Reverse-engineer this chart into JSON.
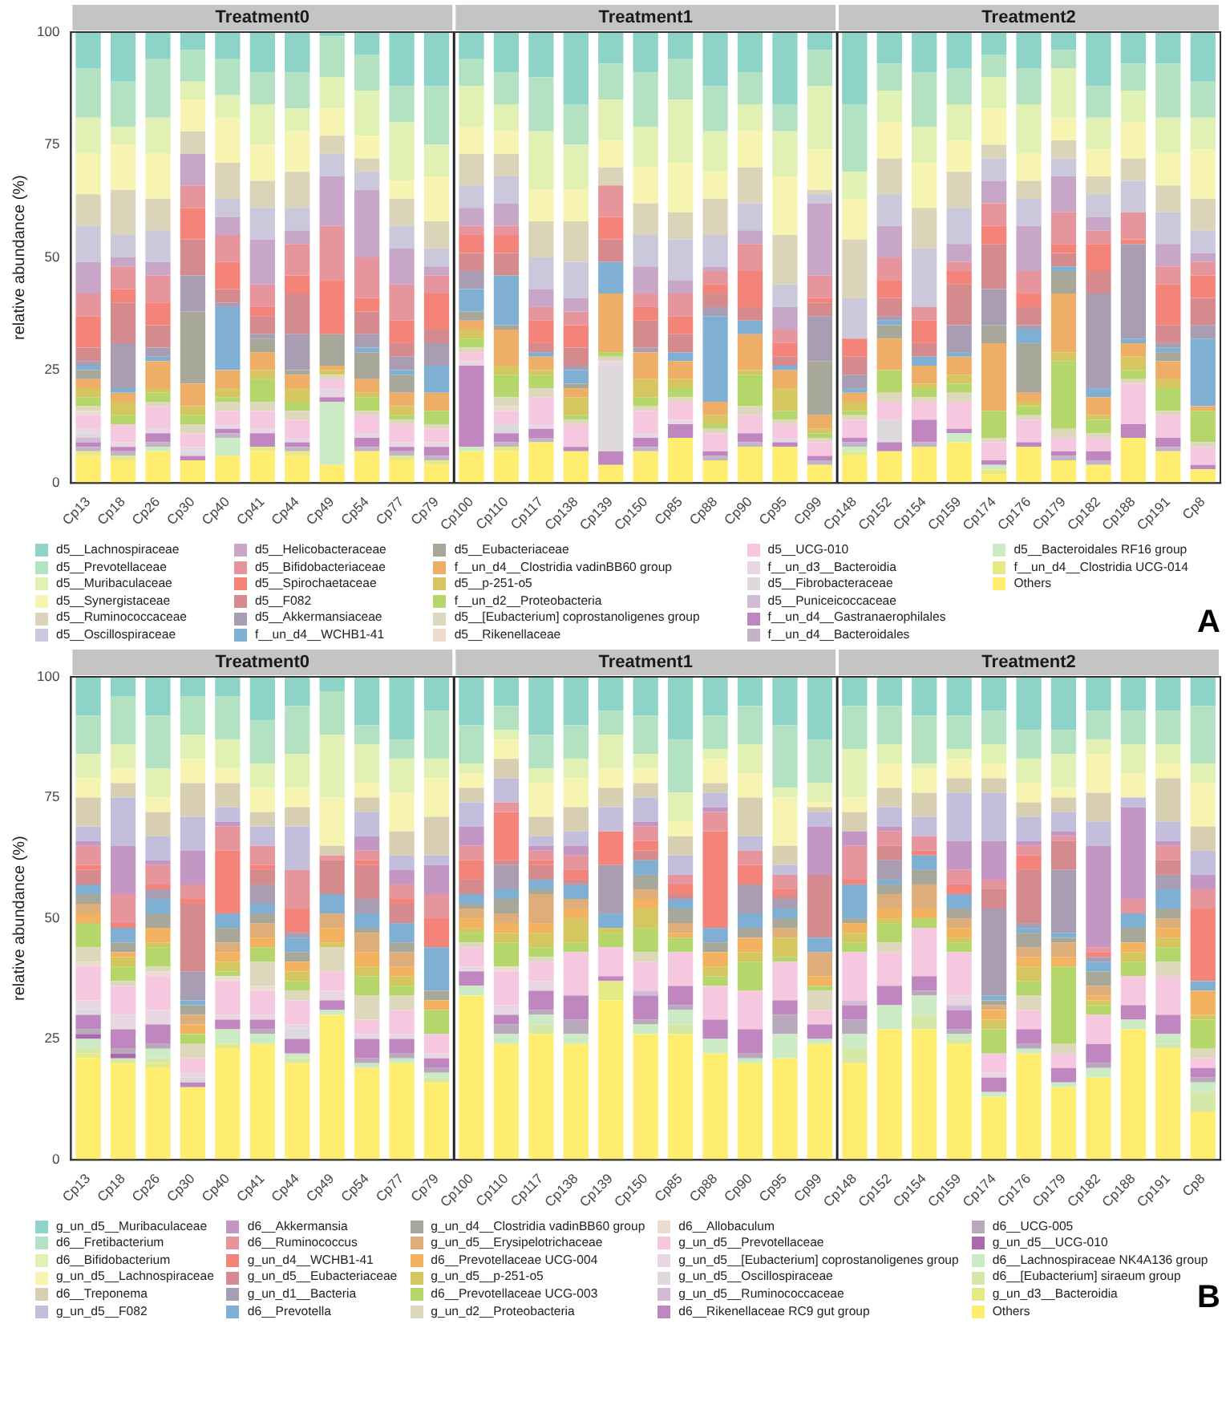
{
  "chart_data": [
    {
      "type": "bar",
      "stacked": true,
      "ylabel": "relative abundance (%)",
      "ylim": [
        0,
        100
      ],
      "yticks": [
        0,
        25,
        50,
        75,
        100
      ],
      "legend": "bottom",
      "annotations": [
        "Treatment0",
        "Treatment1",
        "Treatment2",
        "A"
      ],
      "categories": [
        "Cp13",
        "Cp18",
        "Cp26",
        "Cp30",
        "Cp40",
        "Cp41",
        "Cp44",
        "Cp49",
        "Cp54",
        "Cp77",
        "Cp79",
        "Cp100",
        "Cp110",
        "Cp117",
        "Cp138",
        "Cp139",
        "Cp150",
        "Cp85",
        "Cp88",
        "Cp90",
        "Cp95",
        "Cp99",
        "Cp148",
        "Cp152",
        "Cp154",
        "Cp159",
        "Cp174",
        "Cp176",
        "Cp179",
        "Cp182",
        "Cp188",
        "Cp191",
        "Cp8"
      ],
      "series": [
        {
          "name": "Others",
          "color": "#ffed6f",
          "values": [
            6,
            5,
            7,
            5,
            6,
            7,
            6,
            4,
            7,
            5,
            4,
            7,
            7,
            9,
            7,
            4,
            7,
            10,
            5,
            8,
            8,
            4,
            6,
            7,
            8,
            9,
            2,
            8,
            5,
            4,
            10,
            7,
            3
          ]
        },
        {
          "name": "f__un_d4__Clostridia UCG-014",
          "color": "#e6ea86",
          "values": [
            1,
            1,
            0,
            0,
            0,
            1,
            1,
            0,
            0,
            1,
            1,
            0,
            1,
            0,
            0,
            0,
            0,
            0,
            0,
            0,
            0,
            0,
            1,
            0,
            0,
            0,
            1,
            0,
            0,
            0,
            0,
            0,
            0
          ]
        },
        {
          "name": "d5__Bacteroidales RF16 group",
          "color": "#ccebc5",
          "values": [
            0,
            0,
            1,
            0,
            4,
            0,
            0,
            14,
            0,
            0,
            0,
            1,
            0,
            0,
            0,
            0,
            0,
            0,
            0,
            0,
            0,
            0,
            1,
            0,
            0,
            2,
            1,
            0,
            0,
            0,
            0,
            0,
            0
          ]
        },
        {
          "name": "f__un_d4__Bacteroidales",
          "color": "#c2b4c6",
          "values": [
            1,
            1,
            1,
            0,
            1,
            0,
            1,
            0,
            1,
            1,
            1,
            0,
            1,
            1,
            0,
            0,
            1,
            0,
            1,
            1,
            0,
            1,
            1,
            0,
            1,
            0,
            0,
            0,
            1,
            1,
            0,
            1,
            0
          ]
        },
        {
          "name": "f__un_d4__Gastranaerophilales",
          "color": "#bf86c0",
          "values": [
            1,
            1,
            2,
            1,
            1,
            3,
            1,
            1,
            2,
            1,
            2,
            18,
            2,
            2,
            1,
            3,
            2,
            3,
            1,
            2,
            1,
            1,
            1,
            2,
            5,
            1,
            1,
            1,
            1,
            2,
            3,
            2,
            1
          ]
        },
        {
          "name": "d5__Puniceicoccaceae",
          "color": "#d0bcd4",
          "values": [
            1,
            0,
            0,
            0,
            0,
            0,
            0,
            0,
            0,
            0,
            0,
            0,
            0,
            0,
            0,
            0,
            0,
            0,
            0,
            0,
            0,
            0,
            0,
            0,
            0,
            0,
            0,
            0,
            0,
            0,
            0,
            0,
            0
          ]
        },
        {
          "name": "d5__Fibrobacteraceae",
          "color": "#dcd8dc",
          "values": [
            1,
            0,
            0,
            1,
            0,
            0,
            0,
            0,
            0,
            0,
            0,
            0,
            2,
            0,
            0,
            19,
            0,
            0,
            0,
            0,
            0,
            0,
            0,
            5,
            0,
            0,
            0,
            0,
            0,
            0,
            0,
            0,
            0
          ]
        },
        {
          "name": "f__un_d3__Bacteroidia",
          "color": "#e8d6e2",
          "values": [
            1,
            1,
            1,
            1,
            1,
            1,
            1,
            2,
            1,
            1,
            1,
            1,
            0,
            1,
            0,
            1,
            1,
            1,
            0,
            0,
            1,
            0,
            0,
            0,
            0,
            0,
            0,
            0,
            0,
            0,
            0,
            0,
            0
          ]
        },
        {
          "name": "d5__UCG-010",
          "color": "#f5c8df",
          "values": [
            3,
            4,
            5,
            3,
            3,
            4,
            4,
            2,
            4,
            4,
            3,
            2,
            3,
            6,
            5,
            0,
            5,
            4,
            4,
            4,
            3,
            3,
            4,
            4,
            4,
            6,
            4,
            5,
            3,
            3,
            9,
            5,
            4
          ]
        },
        {
          "name": "d5__Rikenellaceae",
          "color": "#ecdcd0",
          "values": [
            1,
            0,
            0,
            0,
            0,
            0,
            0,
            0,
            0,
            0,
            0,
            0,
            1,
            0,
            0,
            0,
            0,
            0,
            0,
            0,
            0,
            0,
            0,
            0,
            0,
            0,
            0,
            0,
            0,
            0,
            0,
            0,
            0
          ]
        },
        {
          "name": "d5__[Eubacterium] coprostanoligenes group",
          "color": "#ddd8bc",
          "values": [
            1,
            0,
            1,
            2,
            2,
            2,
            2,
            1,
            1,
            1,
            1,
            1,
            2,
            2,
            1,
            1,
            1,
            1,
            1,
            2,
            1,
            1,
            1,
            2,
            1,
            2,
            1,
            1,
            2,
            1,
            1,
            1,
            1
          ]
        },
        {
          "name": "f__un_d2__Proteobacteria",
          "color": "#b5d66a",
          "values": [
            2,
            2,
            2,
            2,
            1,
            5,
            2,
            0,
            3,
            1,
            3,
            2,
            5,
            3,
            1,
            1,
            2,
            2,
            1,
            7,
            2,
            1,
            1,
            5,
            2,
            2,
            6,
            2,
            15,
            3,
            2,
            5,
            7
          ]
        },
        {
          "name": "d5__p-251-o5",
          "color": "#d6c660",
          "values": [
            2,
            3,
            1,
            2,
            2,
            2,
            3,
            1,
            1,
            2,
            0,
            2,
            2,
            1,
            4,
            0,
            4,
            2,
            2,
            1,
            5,
            1,
            2,
            0,
            1,
            2,
            0,
            1,
            2,
            1,
            3,
            2,
            0
          ]
        },
        {
          "name": "f__un_d4__Clostridia vadinBB60 group",
          "color": "#eeae68",
          "values": [
            2,
            2,
            6,
            5,
            4,
            4,
            3,
            1,
            3,
            3,
            4,
            2,
            8,
            3,
            2,
            13,
            6,
            4,
            3,
            8,
            4,
            3,
            2,
            7,
            4,
            4,
            15,
            2,
            13,
            4,
            3,
            4,
            1
          ]
        },
        {
          "name": "d5__Eubacteriaceae",
          "color": "#a8a89a",
          "values": [
            2,
            0,
            0,
            16,
            0,
            3,
            1,
            7,
            6,
            4,
            0,
            2,
            1,
            0,
            1,
            0,
            0,
            0,
            0,
            0,
            0,
            12,
            0,
            3,
            0,
            0,
            4,
            11,
            5,
            0,
            0,
            2,
            0
          ]
        },
        {
          "name": "f__un_d4__WCHB1-41",
          "color": "#7fb0d4",
          "values": [
            1,
            1,
            1,
            0,
            14,
            0,
            0,
            0,
            1,
            1,
            6,
            5,
            11,
            1,
            3,
            7,
            0,
            2,
            19,
            3,
            1,
            0,
            1,
            1,
            2,
            1,
            0,
            3,
            1,
            2,
            1,
            1,
            15
          ]
        },
        {
          "name": "d5__Akkermansiaceae",
          "color": "#a89db2",
          "values": [
            1,
            10,
            2,
            8,
            1,
            1,
            8,
            0,
            3,
            3,
            5,
            4,
            0,
            0,
            1,
            0,
            1,
            0,
            2,
            0,
            0,
            10,
            3,
            1,
            0,
            6,
            8,
            1,
            0,
            21,
            21,
            1,
            3
          ]
        },
        {
          "name": "d5__F082",
          "color": "#d58a8e",
          "values": [
            3,
            9,
            5,
            8,
            3,
            4,
            9,
            0,
            5,
            3,
            3,
            4,
            5,
            2,
            4,
            5,
            6,
            4,
            3,
            3,
            2,
            3,
            4,
            4,
            3,
            9,
            10,
            4,
            3,
            5,
            0,
            4,
            6
          ]
        },
        {
          "name": "d5__Spirochaetaceae",
          "color": "#f4837a",
          "values": [
            7,
            3,
            5,
            7,
            6,
            2,
            4,
            12,
            3,
            5,
            8,
            4,
            4,
            5,
            5,
            5,
            3,
            4,
            2,
            8,
            3,
            1,
            4,
            4,
            5,
            3,
            4,
            3,
            2,
            6,
            1,
            9,
            5
          ]
        },
        {
          "name": "d5__Bifidobacteriaceae",
          "color": "#e6959d",
          "values": [
            5,
            5,
            6,
            5,
            6,
            5,
            7,
            12,
            9,
            8,
            4,
            2,
            2,
            3,
            3,
            7,
            3,
            5,
            3,
            6,
            3,
            5,
            0,
            5,
            3,
            2,
            5,
            5,
            7,
            3,
            6,
            4,
            3
          ]
        },
        {
          "name": "d5__Helicobacteraceae",
          "color": "#c8a6c8",
          "values": [
            7,
            2,
            3,
            7,
            4,
            10,
            3,
            11,
            15,
            8,
            2,
            4,
            5,
            4,
            3,
            0,
            6,
            3,
            1,
            3,
            5,
            16,
            0,
            7,
            0,
            4,
            5,
            10,
            8,
            3,
            0,
            5,
            2
          ]
        },
        {
          "name": "d5__Oscillospiraceae",
          "color": "#cbc8db",
          "values": [
            8,
            5,
            7,
            0,
            4,
            7,
            5,
            5,
            4,
            5,
            4,
            5,
            6,
            7,
            8,
            0,
            7,
            9,
            7,
            6,
            5,
            2,
            9,
            7,
            13,
            8,
            5,
            6,
            4,
            5,
            7,
            7,
            5
          ]
        },
        {
          "name": "d5__Ruminococcaceae",
          "color": "#dcd4b8",
          "values": [
            7,
            10,
            7,
            5,
            8,
            6,
            8,
            4,
            3,
            6,
            6,
            7,
            5,
            8,
            9,
            4,
            7,
            6,
            8,
            8,
            11,
            1,
            13,
            8,
            9,
            8,
            3,
            4,
            4,
            4,
            5,
            6,
            7
          ]
        },
        {
          "name": "d5__Synergistaceae",
          "color": "#f6f4b0",
          "values": [
            9,
            10,
            10,
            7,
            10,
            8,
            9,
            6,
            5,
            4,
            10,
            6,
            5,
            7,
            7,
            6,
            8,
            11,
            6,
            8,
            13,
            9,
            9,
            8,
            10,
            7,
            8,
            6,
            5,
            6,
            8,
            7,
            11
          ]
        },
        {
          "name": "d5__Muribaculaceae",
          "color": "#e1f1b3",
          "values": [
            8,
            4,
            8,
            4,
            5,
            9,
            5,
            7,
            10,
            13,
            7,
            9,
            6,
            13,
            10,
            9,
            9,
            14,
            9,
            6,
            10,
            14,
            6,
            7,
            8,
            8,
            7,
            11,
            11,
            7,
            7,
            8,
            7
          ]
        },
        {
          "name": "d5__Prevotellaceae",
          "color": "#b3e2c3",
          "values": [
            11,
            10,
            13,
            7,
            8,
            7,
            8,
            9,
            8,
            8,
            13,
            6,
            7,
            12,
            9,
            8,
            12,
            9,
            10,
            7,
            6,
            8,
            15,
            6,
            12,
            8,
            5,
            8,
            4,
            7,
            6,
            12,
            8
          ]
        },
        {
          "name": "d5__Lachnospiraceae",
          "color": "#8dd3c7",
          "values": [
            8,
            11,
            6,
            4,
            6,
            9,
            9,
            1,
            5,
            12,
            12,
            6,
            9,
            10,
            16,
            7,
            9,
            6,
            12,
            9,
            16,
            4,
            16,
            7,
            9,
            8,
            5,
            8,
            4,
            12,
            7,
            7,
            11
          ]
        }
      ]
    },
    {
      "type": "bar",
      "stacked": true,
      "ylabel": "relative abundance (%)",
      "ylim": [
        0,
        100
      ],
      "yticks": [
        0,
        25,
        50,
        75,
        100
      ],
      "legend": "bottom",
      "annotations": [
        "Treatment0",
        "Treatment1",
        "Treatment2",
        "B"
      ],
      "categories": [
        "Cp13",
        "Cp18",
        "Cp26",
        "Cp30",
        "Cp40",
        "Cp41",
        "Cp44",
        "Cp49",
        "Cp54",
        "Cp77",
        "Cp79",
        "Cp100",
        "Cp110",
        "Cp117",
        "Cp138",
        "Cp139",
        "Cp150",
        "Cp85",
        "Cp88",
        "Cp90",
        "Cp95",
        "Cp99",
        "Cp148",
        "Cp152",
        "Cp154",
        "Cp159",
        "Cp174",
        "Cp176",
        "Cp179",
        "Cp182",
        "Cp188",
        "Cp191",
        "Cp8"
      ],
      "series": [
        {
          "name": "Others",
          "color": "#ffed6f",
          "values": [
            21,
            20,
            19,
            15,
            23,
            24,
            20,
            30,
            19,
            20,
            16,
            34,
            24,
            26,
            24,
            33,
            26,
            26,
            22,
            20,
            21,
            24,
            20,
            27,
            27,
            24,
            13,
            22,
            15,
            17,
            27,
            23,
            10
          ]
        },
        {
          "name": "g_un_d3__Bacteroidia",
          "color": "#e6ea86",
          "values": [
            1,
            0,
            1,
            0,
            1,
            0,
            0,
            0,
            0,
            0,
            0,
            0,
            0,
            0,
            0,
            4,
            0,
            0,
            0,
            0,
            0,
            0,
            0,
            0,
            0,
            0,
            0,
            0,
            0,
            0,
            0,
            0,
            0
          ]
        },
        {
          "name": "d6__[Eubacterium] siraeum group",
          "color": "#d6e8a8",
          "values": [
            1,
            1,
            1,
            0,
            0,
            0,
            1,
            0,
            0,
            0,
            1,
            0,
            0,
            2,
            0,
            0,
            0,
            2,
            0,
            0,
            0,
            0,
            3,
            0,
            3,
            1,
            0,
            0,
            0,
            0,
            0,
            1,
            4
          ]
        },
        {
          "name": "d6__Lachnospiraceae NK4A136 group",
          "color": "#ccebc5",
          "values": [
            2,
            0,
            2,
            0,
            3,
            2,
            1,
            1,
            1,
            1,
            1,
            2,
            2,
            2,
            2,
            0,
            2,
            3,
            3,
            1,
            5,
            1,
            3,
            5,
            4,
            1,
            1,
            1,
            1,
            2,
            2,
            2,
            2
          ]
        },
        {
          "name": "g_un_d5__UCG-010",
          "color": "#a86aac",
          "values": [
            1,
            1,
            0,
            0,
            0,
            0,
            0,
            0,
            0,
            0,
            0,
            0,
            0,
            0,
            0,
            0,
            0,
            0,
            0,
            0,
            0,
            0,
            0,
            0,
            0,
            0,
            0,
            0,
            0,
            0,
            0,
            0,
            0
          ]
        },
        {
          "name": "d6__UCG-005",
          "color": "#b8a8bc",
          "values": [
            1,
            1,
            1,
            0,
            0,
            1,
            0,
            0,
            1,
            1,
            1,
            0,
            2,
            1,
            3,
            0,
            1,
            1,
            0,
            1,
            4,
            0,
            3,
            0,
            1,
            1,
            0,
            1,
            0,
            1,
            0,
            0,
            1
          ]
        },
        {
          "name": "d6__Rikenellaceae RC9 gut group",
          "color": "#bf86c0",
          "values": [
            3,
            4,
            4,
            1,
            2,
            2,
            3,
            2,
            4,
            3,
            2,
            3,
            2,
            4,
            5,
            1,
            5,
            4,
            4,
            5,
            3,
            3,
            3,
            4,
            3,
            4,
            3,
            3,
            3,
            4,
            3,
            4,
            2
          ]
        },
        {
          "name": "g_un_d5__Ruminococcaceae",
          "color": "#d0bcd4",
          "values": [
            0,
            0,
            0,
            0,
            0,
            0,
            0,
            0,
            0,
            0,
            0,
            0,
            0,
            0,
            0,
            0,
            1,
            0,
            0,
            0,
            0,
            0,
            1,
            0,
            0,
            1,
            0,
            0,
            0,
            0,
            0,
            0,
            0
          ]
        },
        {
          "name": "g_un_d5__Oscillospiraceae",
          "color": "#dcd8dc",
          "values": [
            1,
            0,
            0,
            1,
            0,
            0,
            2,
            0,
            0,
            0,
            0,
            0,
            0,
            0,
            0,
            0,
            0,
            0,
            0,
            0,
            0,
            0,
            0,
            0,
            0,
            0,
            0,
            0,
            0,
            0,
            0,
            0,
            0
          ]
        },
        {
          "name": "g_un_d5__[Eubacterium] coprostanoligenes group",
          "color": "#e8d6e2",
          "values": [
            2,
            3,
            3,
            1,
            1,
            1,
            1,
            2,
            1,
            1,
            1,
            1,
            2,
            2,
            0,
            0,
            0,
            0,
            0,
            0,
            0,
            0,
            0,
            0,
            0,
            2,
            1,
            0,
            0,
            0,
            0,
            0,
            0
          ]
        },
        {
          "name": "g_un_d5__Prevotellaceae",
          "color": "#f5c8df",
          "values": [
            7,
            6,
            7,
            3,
            7,
            5,
            5,
            4,
            3,
            5,
            4,
            4,
            7,
            4,
            9,
            6,
            6,
            7,
            7,
            8,
            8,
            3,
            10,
            7,
            10,
            9,
            4,
            4,
            3,
            6,
            6,
            8,
            2
          ]
        },
        {
          "name": "d6__Allobaculum",
          "color": "#ecdcd0",
          "values": [
            1,
            0,
            1,
            0,
            1,
            1,
            0,
            0,
            0,
            0,
            0,
            0,
            1,
            0,
            0,
            0,
            0,
            0,
            0,
            0,
            0,
            0,
            0,
            0,
            0,
            0,
            0,
            0,
            0,
            0,
            0,
            0,
            0
          ]
        },
        {
          "name": "g_un_d2__Proteobacteria",
          "color": "#ddd8bc",
          "values": [
            3,
            1,
            1,
            3,
            0,
            5,
            2,
            5,
            5,
            3,
            0,
            1,
            0,
            1,
            0,
            0,
            2,
            0,
            0,
            0,
            0,
            4,
            0,
            2,
            0,
            0,
            0,
            3,
            2,
            0,
            0,
            3,
            2
          ]
        },
        {
          "name": "d6__Prevotellaceae UCG-003",
          "color": "#b5d66a",
          "values": [
            5,
            3,
            4,
            2,
            1,
            3,
            2,
            0,
            4,
            2,
            5,
            2,
            5,
            2,
            2,
            3,
            5,
            3,
            2,
            6,
            1,
            1,
            2,
            4,
            2,
            2,
            5,
            3,
            16,
            2,
            3,
            3,
            6
          ]
        },
        {
          "name": "g_un_d5__p-251-o5",
          "color": "#d6c660",
          "values": [
            0,
            2,
            1,
            0,
            2,
            0,
            2,
            1,
            2,
            2,
            0,
            1,
            2,
            3,
            5,
            1,
            4,
            0,
            2,
            2,
            4,
            0,
            2,
            1,
            0,
            1,
            2,
            3,
            0,
            1,
            2,
            2,
            1
          ]
        },
        {
          "name": "d6__Prevotellaceae UCG-004",
          "color": "#f3b25f",
          "values": [
            2,
            1,
            3,
            2,
            2,
            2,
            2,
            3,
            3,
            2,
            2,
            2,
            2,
            2,
            2,
            0,
            2,
            1,
            3,
            3,
            0,
            2,
            2,
            2,
            2,
            2,
            2,
            2,
            2,
            1,
            2,
            2,
            5
          ]
        },
        {
          "name": "g_un_d5__Erysipelotrichaceae",
          "color": "#deae7a",
          "values": [
            2,
            0,
            0,
            2,
            2,
            3,
            0,
            3,
            4,
            3,
            0,
            2,
            2,
            6,
            2,
            0,
            2,
            2,
            0,
            0,
            2,
            5,
            0,
            3,
            5,
            2,
            1,
            2,
            3,
            2,
            0,
            2,
            0
          ]
        },
        {
          "name": "g_un_d4__Clostridia vadinBB60 group",
          "color": "#a8a89a",
          "values": [
            2,
            2,
            3,
            2,
            3,
            2,
            2,
            0,
            1,
            2,
            2,
            1,
            3,
            1,
            0,
            0,
            3,
            3,
            2,
            2,
            2,
            0,
            1,
            2,
            3,
            2,
            1,
            3,
            1,
            3,
            3,
            2,
            0
          ]
        },
        {
          "name": "d6__Prevotella",
          "color": "#7fb0d4",
          "values": [
            2,
            3,
            3,
            1,
            3,
            2,
            3,
            4,
            3,
            4,
            9,
            2,
            2,
            2,
            3,
            3,
            3,
            2,
            3,
            3,
            2,
            3,
            7,
            1,
            3,
            3,
            1,
            1,
            1,
            2,
            3,
            4,
            2
          ]
        },
        {
          "name": "g_un_d1__Bacteria",
          "color": "#a89db2",
          "values": [
            0,
            0,
            2,
            6,
            0,
            4,
            1,
            0,
            3,
            0,
            0,
            0,
            5,
            0,
            0,
            10,
            0,
            0,
            0,
            6,
            2,
            0,
            0,
            4,
            0,
            0,
            18,
            1,
            13,
            1,
            0,
            3,
            0
          ]
        },
        {
          "name": "g_un_d5__Eubacteriaceae",
          "color": "#d58a8e",
          "values": [
            3,
            0,
            0,
            14,
            0,
            3,
            0,
            7,
            7,
            4,
            0,
            3,
            1,
            3,
            1,
            0,
            2,
            1,
            0,
            0,
            1,
            13,
            0,
            3,
            0,
            0,
            4,
            11,
            6,
            0,
            0,
            3,
            0
          ]
        },
        {
          "name": "g_un_d4__WCHB1-41",
          "color": "#f4837a",
          "values": [
            1,
            1,
            1,
            1,
            13,
            1,
            5,
            0,
            1,
            1,
            6,
            4,
            10,
            1,
            2,
            7,
            2,
            2,
            20,
            4,
            1,
            0,
            1,
            0,
            1,
            2,
            0,
            3,
            0,
            1,
            0,
            0,
            15
          ]
        },
        {
          "name": "d6__Ruminococcus",
          "color": "#e6959d",
          "values": [
            4,
            6,
            4,
            3,
            5,
            4,
            8,
            1,
            2,
            3,
            5,
            3,
            2,
            2,
            3,
            0,
            3,
            2,
            4,
            3,
            3,
            0,
            7,
            3,
            3,
            3,
            2,
            2,
            1,
            1,
            3,
            3,
            4
          ]
        },
        {
          "name": "d6__Akkermansia",
          "color": "#c496c4",
          "values": [
            1,
            10,
            1,
            7,
            1,
            0,
            0,
            0,
            3,
            3,
            6,
            4,
            0,
            1,
            2,
            0,
            1,
            0,
            1,
            0,
            0,
            10,
            3,
            1,
            0,
            6,
            8,
            1,
            1,
            21,
            19,
            1,
            3
          ]
        },
        {
          "name": "g_un_d5__F082",
          "color": "#c2bedc",
          "values": [
            3,
            10,
            5,
            7,
            3,
            4,
            9,
            0,
            5,
            3,
            2,
            5,
            5,
            2,
            3,
            5,
            5,
            4,
            3,
            3,
            2,
            3,
            0,
            4,
            4,
            10,
            10,
            5,
            4,
            5,
            2,
            4,
            5
          ]
        },
        {
          "name": "d6__Treponema",
          "color": "#d8cfb2",
          "values": [
            6,
            3,
            5,
            7,
            5,
            3,
            4,
            2,
            3,
            5,
            8,
            3,
            4,
            4,
            5,
            4,
            3,
            4,
            2,
            8,
            4,
            1,
            4,
            4,
            5,
            3,
            3,
            3,
            3,
            6,
            0,
            9,
            5
          ]
        },
        {
          "name": "g_un_d5__Lachnospiraceae",
          "color": "#f6f4b0",
          "values": [
            4,
            3,
            3,
            5,
            3,
            5,
            4,
            10,
            3,
            8,
            8,
            3,
            4,
            7,
            6,
            4,
            3,
            3,
            5,
            5,
            10,
            1,
            3,
            5,
            5,
            4,
            3,
            4,
            2,
            8,
            5,
            3,
            9
          ]
        },
        {
          "name": "d6__Bifidobacterium",
          "color": "#e1f1b3",
          "values": [
            5,
            5,
            6,
            5,
            6,
            5,
            7,
            13,
            8,
            7,
            4,
            2,
            2,
            3,
            4,
            7,
            3,
            6,
            2,
            6,
            2,
            4,
            10,
            4,
            1,
            2,
            4,
            5,
            7,
            3,
            6,
            4,
            4
          ]
        },
        {
          "name": "d6__Fretibacterium",
          "color": "#b3e2c3",
          "values": [
            8,
            10,
            11,
            8,
            9,
            9,
            10,
            9,
            4,
            4,
            10,
            8,
            5,
            7,
            7,
            5,
            8,
            11,
            7,
            8,
            13,
            9,
            9,
            8,
            10,
            7,
            7,
            6,
            5,
            6,
            7,
            7,
            12
          ]
        },
        {
          "name": "g_un_d5__Muribaculaceae",
          "color": "#8dd3c7",
          "values": [
            8,
            4,
            8,
            4,
            4,
            9,
            6,
            3,
            10,
            13,
            7,
            10,
            6,
            12,
            10,
            7,
            8,
            13,
            8,
            6,
            10,
            13,
            6,
            6,
            8,
            8,
            7,
            11,
            11,
            7,
            7,
            7,
            6
          ]
        }
      ]
    }
  ]
}
